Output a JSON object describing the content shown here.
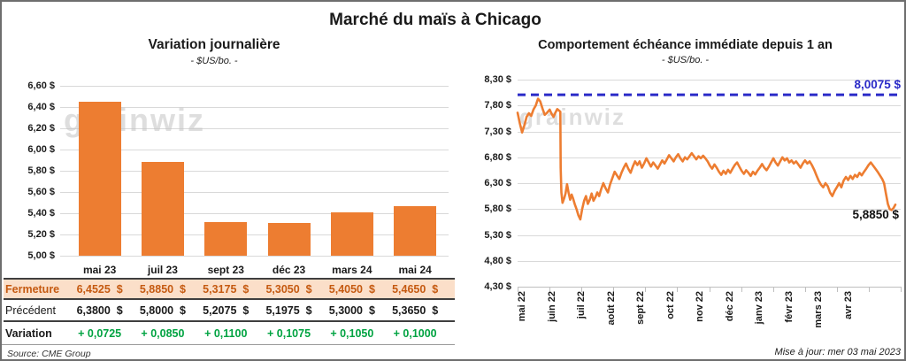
{
  "page": {
    "title": "Marché du maïs à Chicago",
    "source": "Source: CME Group",
    "updated": "Mise à jour: mer 03 mai 2023",
    "watermark": "grainwiz"
  },
  "colors": {
    "orange": "#ED7D31",
    "green": "#00A341",
    "accent_text": "#C55A11",
    "accent_bg": "#FBDFC9",
    "blue": "#2A2AC8",
    "grid": "#D9D9D9",
    "axis": "#BFBFBF",
    "border_dark": "#3F3F3F"
  },
  "table": {
    "columns": [
      "mai 23",
      "juil 23",
      "sept 23",
      "déc 23",
      "mars 24",
      "mai 24"
    ],
    "rows": [
      {
        "label": "Fermeture",
        "style": "accent",
        "unit": "$",
        "values": [
          "6,4525",
          "5,8850",
          "5,3175",
          "5,3050",
          "5,4050",
          "5,4650"
        ]
      },
      {
        "label": "Précédent",
        "style": "plain",
        "unit": "$",
        "values": [
          "6,3800",
          "5,8000",
          "5,2075",
          "5,1975",
          "5,3000",
          "5,3650"
        ]
      },
      {
        "label": "Variation",
        "style": "green",
        "unit": "",
        "values": [
          "+ 0,0725",
          "+ 0,0850",
          "+ 0,1100",
          "+ 0,1075",
          "+ 0,1050",
          "+ 0,1000"
        ]
      }
    ]
  },
  "chart_data": [
    {
      "type": "bar",
      "title": "Variation journalière",
      "subtitle": "- $US/bo. -",
      "categories": [
        "mai 23",
        "juil 23",
        "sept 23",
        "déc 23",
        "mars 24",
        "mai 24"
      ],
      "values": [
        6.4525,
        5.885,
        5.3175,
        5.305,
        5.405,
        5.465
      ],
      "ylim": [
        5.0,
        6.6
      ],
      "ytick_step": 0.2,
      "ytick_labels": [
        "6,60 $",
        "6,40 $",
        "6,20 $",
        "6,00 $",
        "5,80 $",
        "5,60 $",
        "5,40 $",
        "5,20 $",
        "5,00 $"
      ],
      "grid": true,
      "bar_color": "#ED7D31"
    },
    {
      "type": "line",
      "title": "Comportement échéance immédiate depuis 1 an",
      "subtitle": "- $US/bo. -",
      "x_labels": [
        "mai 22",
        "juin 22",
        "juil 22",
        "août 22",
        "sept 22",
        "oct 22",
        "nov 22",
        "déc 22",
        "janv 23",
        "févr 23",
        "mars 23",
        "avr 23"
      ],
      "ylim": [
        4.3,
        8.3
      ],
      "ytick_step": 0.5,
      "ytick_labels": [
        "8,30 $",
        "7,80 $",
        "7,30 $",
        "6,80 $",
        "6,30 $",
        "5,80 $",
        "5,30 $",
        "4,80 $",
        "4,30 $"
      ],
      "grid": true,
      "line_color": "#ED7D31",
      "reference_line": {
        "value": 8.0075,
        "label": "8,0075 $",
        "color": "#2A2AC8",
        "style": "dashed"
      },
      "last_value": 5.885,
      "end_label": "5,8850 $",
      "series": [
        {
          "name": "échéance immédiate",
          "points": [
            [
              0,
              7.66
            ],
            [
              0.006,
              7.45
            ],
            [
              0.012,
              7.28
            ],
            [
              0.018,
              7.42
            ],
            [
              0.024,
              7.58
            ],
            [
              0.03,
              7.65
            ],
            [
              0.036,
              7.6
            ],
            [
              0.042,
              7.72
            ],
            [
              0.048,
              7.8
            ],
            [
              0.054,
              7.93
            ],
            [
              0.06,
              7.88
            ],
            [
              0.066,
              7.74
            ],
            [
              0.072,
              7.62
            ],
            [
              0.078,
              7.66
            ],
            [
              0.085,
              7.72
            ],
            [
              0.09,
              7.64
            ],
            [
              0.095,
              7.58
            ],
            [
              0.1,
              7.66
            ],
            [
              0.105,
              7.73
            ],
            [
              0.11,
              7.7
            ],
            [
              0.113,
              7.68
            ],
            [
              0.114,
              6.6
            ],
            [
              0.116,
              6.12
            ],
            [
              0.119,
              5.92
            ],
            [
              0.123,
              6.0
            ],
            [
              0.127,
              6.1
            ],
            [
              0.131,
              6.28
            ],
            [
              0.135,
              6.12
            ],
            [
              0.139,
              5.98
            ],
            [
              0.143,
              6.08
            ],
            [
              0.147,
              6.0
            ],
            [
              0.151,
              5.9
            ],
            [
              0.156,
              5.8
            ],
            [
              0.161,
              5.68
            ],
            [
              0.166,
              5.6
            ],
            [
              0.171,
              5.8
            ],
            [
              0.176,
              5.96
            ],
            [
              0.181,
              6.05
            ],
            [
              0.186,
              5.9
            ],
            [
              0.191,
              5.98
            ],
            [
              0.196,
              6.1
            ],
            [
              0.201,
              5.96
            ],
            [
              0.206,
              6.03
            ],
            [
              0.211,
              6.12
            ],
            [
              0.216,
              6.05
            ],
            [
              0.221,
              6.18
            ],
            [
              0.227,
              6.3
            ],
            [
              0.233,
              6.2
            ],
            [
              0.239,
              6.12
            ],
            [
              0.245,
              6.28
            ],
            [
              0.251,
              6.4
            ],
            [
              0.257,
              6.52
            ],
            [
              0.263,
              6.45
            ],
            [
              0.269,
              6.38
            ],
            [
              0.275,
              6.5
            ],
            [
              0.281,
              6.6
            ],
            [
              0.287,
              6.68
            ],
            [
              0.293,
              6.58
            ],
            [
              0.299,
              6.5
            ],
            [
              0.305,
              6.62
            ],
            [
              0.311,
              6.72
            ],
            [
              0.317,
              6.65
            ],
            [
              0.323,
              6.72
            ],
            [
              0.329,
              6.6
            ],
            [
              0.335,
              6.68
            ],
            [
              0.341,
              6.78
            ],
            [
              0.347,
              6.7
            ],
            [
              0.353,
              6.62
            ],
            [
              0.359,
              6.7
            ],
            [
              0.365,
              6.64
            ],
            [
              0.371,
              6.58
            ],
            [
              0.377,
              6.66
            ],
            [
              0.383,
              6.74
            ],
            [
              0.389,
              6.68
            ],
            [
              0.395,
              6.76
            ],
            [
              0.401,
              6.84
            ],
            [
              0.407,
              6.78
            ],
            [
              0.413,
              6.72
            ],
            [
              0.419,
              6.8
            ],
            [
              0.425,
              6.86
            ],
            [
              0.431,
              6.78
            ],
            [
              0.437,
              6.72
            ],
            [
              0.443,
              6.8
            ],
            [
              0.449,
              6.76
            ],
            [
              0.455,
              6.82
            ],
            [
              0.461,
              6.88
            ],
            [
              0.467,
              6.82
            ],
            [
              0.473,
              6.76
            ],
            [
              0.479,
              6.82
            ],
            [
              0.485,
              6.78
            ],
            [
              0.491,
              6.83
            ],
            [
              0.497,
              6.78
            ],
            [
              0.503,
              6.72
            ],
            [
              0.509,
              6.64
            ],
            [
              0.515,
              6.58
            ],
            [
              0.521,
              6.66
            ],
            [
              0.527,
              6.6
            ],
            [
              0.533,
              6.52
            ],
            [
              0.539,
              6.46
            ],
            [
              0.545,
              6.54
            ],
            [
              0.551,
              6.48
            ],
            [
              0.557,
              6.56
            ],
            [
              0.563,
              6.5
            ],
            [
              0.569,
              6.58
            ],
            [
              0.575,
              6.65
            ],
            [
              0.581,
              6.7
            ],
            [
              0.587,
              6.62
            ],
            [
              0.593,
              6.54
            ],
            [
              0.599,
              6.48
            ],
            [
              0.605,
              6.55
            ],
            [
              0.611,
              6.5
            ],
            [
              0.617,
              6.44
            ],
            [
              0.623,
              6.52
            ],
            [
              0.629,
              6.47
            ],
            [
              0.635,
              6.54
            ],
            [
              0.641,
              6.6
            ],
            [
              0.647,
              6.67
            ],
            [
              0.653,
              6.6
            ],
            [
              0.659,
              6.55
            ],
            [
              0.665,
              6.62
            ],
            [
              0.671,
              6.7
            ],
            [
              0.677,
              6.78
            ],
            [
              0.683,
              6.7
            ],
            [
              0.689,
              6.64
            ],
            [
              0.695,
              6.72
            ],
            [
              0.701,
              6.8
            ],
            [
              0.707,
              6.74
            ],
            [
              0.713,
              6.78
            ],
            [
              0.719,
              6.7
            ],
            [
              0.725,
              6.74
            ],
            [
              0.731,
              6.68
            ],
            [
              0.737,
              6.72
            ],
            [
              0.743,
              6.66
            ],
            [
              0.749,
              6.6
            ],
            [
              0.755,
              6.68
            ],
            [
              0.761,
              6.74
            ],
            [
              0.767,
              6.68
            ],
            [
              0.773,
              6.72
            ],
            [
              0.779,
              6.65
            ],
            [
              0.785,
              6.56
            ],
            [
              0.791,
              6.45
            ],
            [
              0.797,
              6.35
            ],
            [
              0.803,
              6.27
            ],
            [
              0.809,
              6.22
            ],
            [
              0.815,
              6.3
            ],
            [
              0.821,
              6.24
            ],
            [
              0.827,
              6.12
            ],
            [
              0.833,
              6.05
            ],
            [
              0.839,
              6.15
            ],
            [
              0.845,
              6.22
            ],
            [
              0.851,
              6.3
            ],
            [
              0.857,
              6.22
            ],
            [
              0.863,
              6.35
            ],
            [
              0.869,
              6.42
            ],
            [
              0.875,
              6.36
            ],
            [
              0.881,
              6.44
            ],
            [
              0.887,
              6.38
            ],
            [
              0.893,
              6.46
            ],
            [
              0.899,
              6.42
            ],
            [
              0.905,
              6.5
            ],
            [
              0.911,
              6.45
            ],
            [
              0.917,
              6.52
            ],
            [
              0.923,
              6.58
            ],
            [
              0.929,
              6.65
            ],
            [
              0.935,
              6.7
            ],
            [
              0.941,
              6.64
            ],
            [
              0.947,
              6.58
            ],
            [
              0.953,
              6.52
            ],
            [
              0.959,
              6.45
            ],
            [
              0.965,
              6.38
            ],
            [
              0.97,
              6.3
            ],
            [
              0.975,
              6.1
            ],
            [
              0.98,
              5.9
            ],
            [
              0.985,
              5.8
            ],
            [
              0.99,
              5.78
            ],
            [
              0.995,
              5.82
            ],
            [
              1,
              5.885
            ]
          ]
        }
      ]
    }
  ]
}
